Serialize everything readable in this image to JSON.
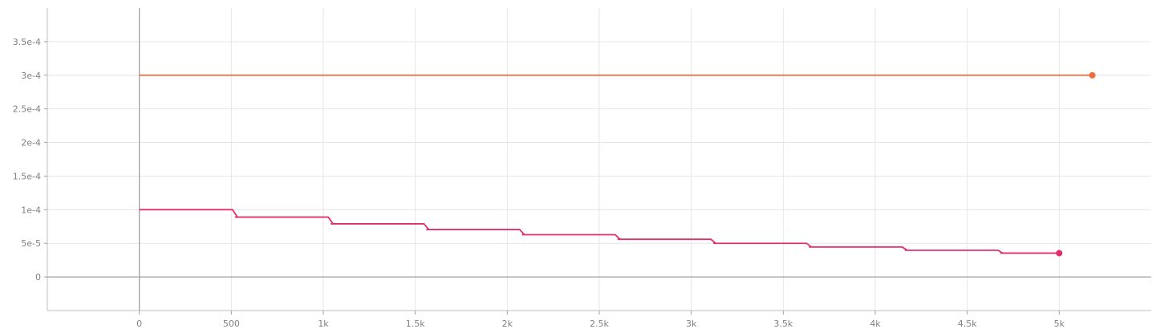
{
  "chart_data": {
    "type": "line",
    "title": "",
    "xlabel": "",
    "ylabel": "",
    "xlim": [
      -500,
      5500
    ],
    "ylim": [
      -5e-05,
      0.0004
    ],
    "grid": true,
    "x_ticks": [
      0,
      500,
      1000,
      1500,
      2000,
      2500,
      3000,
      3500,
      4000,
      4500,
      5000
    ],
    "x_tick_labels": [
      "0",
      "500",
      "1k",
      "1.5k",
      "2k",
      "2.5k",
      "3k",
      "3.5k",
      "4k",
      "4.5k",
      "5k"
    ],
    "y_ticks": [
      0,
      5e-05,
      0.0001,
      0.00015,
      0.0002,
      0.00025,
      0.0003,
      0.00035
    ],
    "y_tick_labels": [
      "0",
      "5e-5",
      "1e-4",
      "1.5e-4",
      "2e-4",
      "2.5e-4",
      "3e-4",
      "3.5e-4"
    ],
    "series": [
      {
        "color": "#f26b3a",
        "steps": [
          [
            0,
            0.0003
          ],
          [
            5180,
            0.0003
          ]
        ],
        "end_marker": true
      },
      {
        "color": "#e0306a",
        "steps": [
          [
            0,
            0.0001
          ],
          [
            520,
            8.9e-05
          ],
          [
            1040,
            7.9e-05
          ],
          [
            1560,
            7.05e-05
          ],
          [
            2080,
            6.28e-05
          ],
          [
            2600,
            5.6e-05
          ],
          [
            3120,
            5e-05
          ],
          [
            3640,
            4.45e-05
          ],
          [
            4160,
            3.97e-05
          ],
          [
            4680,
            3.54e-05
          ],
          [
            5000,
            3.54e-05
          ]
        ],
        "end_marker": true
      }
    ]
  }
}
